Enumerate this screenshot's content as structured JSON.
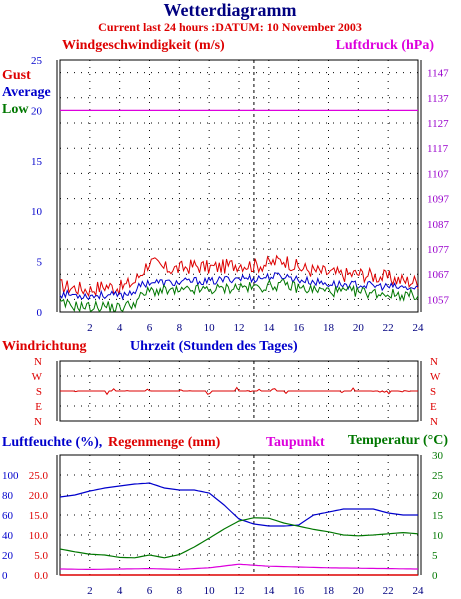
{
  "colors": {
    "red": "#dd0000",
    "blue": "#0000cc",
    "green": "#007700",
    "navy": "#000080",
    "magenta": "#dd00dd",
    "purple": "#9900cc",
    "black": "#000000",
    "grid": "#000000"
  },
  "header": {
    "title": "Wetterdiagramm",
    "subtitle": "Current last 24 hours :DATUM: 10 November 2003"
  },
  "chart_data": [
    {
      "type": "line",
      "title": "Windgeschwindigkeit (m/s)",
      "right_title": "Luftdruck (hPa)",
      "xlim": [
        0,
        24
      ],
      "ylim": [
        0,
        25
      ],
      "y2lim": [
        1052,
        1152
      ],
      "x_ticks": [
        "2",
        "4",
        "6",
        "8",
        "10",
        "12",
        "14",
        "16",
        "18",
        "20",
        "22",
        "24"
      ],
      "y_ticks": [
        "0",
        "5",
        "10",
        "15",
        "20",
        "25"
      ],
      "y2_ticks": [
        "1057",
        "1067",
        "1077",
        "1087",
        "1097",
        "1107",
        "1117",
        "1127",
        "1137",
        "1147"
      ],
      "legend": [
        "Gust",
        "Average",
        "Low"
      ],
      "grid": true,
      "series": [
        {
          "name": "Gust",
          "color": "#dd0000",
          "x": [
            0,
            1,
            2,
            3,
            4,
            5,
            5.5,
            6,
            7,
            8,
            9,
            10,
            11,
            12,
            13,
            14,
            15,
            16,
            17,
            18,
            19,
            20,
            21,
            22,
            23,
            24
          ],
          "values": [
            2.6,
            2.4,
            2.2,
            2.6,
            2.4,
            3.0,
            4.0,
            5.0,
            4.3,
            4.3,
            4.6,
            4.4,
            4.5,
            4.8,
            4.6,
            4.8,
            5.2,
            4.4,
            4.1,
            3.9,
            3.7,
            3.8,
            3.6,
            3.4,
            3.1,
            3.0
          ]
        },
        {
          "name": "Average",
          "color": "#0000cc",
          "x": [
            0,
            1,
            2,
            3,
            4,
            5,
            5.5,
            6,
            7,
            8,
            9,
            10,
            11,
            12,
            13,
            14,
            15,
            16,
            17,
            18,
            19,
            20,
            21,
            22,
            23,
            24
          ],
          "values": [
            1.8,
            1.7,
            1.6,
            1.7,
            1.6,
            2.1,
            2.7,
            3.0,
            2.9,
            2.9,
            3.1,
            3.0,
            3.2,
            3.4,
            3.3,
            3.5,
            3.6,
            3.2,
            3.0,
            2.8,
            2.7,
            2.7,
            2.6,
            2.5,
            2.4,
            2.3
          ]
        },
        {
          "name": "Low",
          "color": "#007700",
          "x": [
            0,
            1,
            2,
            3,
            4,
            5,
            5.5,
            6,
            7,
            8,
            9,
            10,
            11,
            12,
            13,
            14,
            15,
            16,
            17,
            18,
            19,
            20,
            21,
            22,
            23,
            24
          ],
          "values": [
            0.8,
            0.6,
            0.5,
            0.6,
            0.4,
            0.9,
            1.6,
            2.1,
            2.1,
            2.0,
            2.2,
            2.2,
            2.3,
            2.5,
            2.4,
            2.6,
            2.7,
            2.4,
            2.2,
            2.1,
            2.0,
            2.0,
            1.9,
            1.8,
            1.7,
            1.7
          ]
        },
        {
          "name": "Luftdruck",
          "color": "#dd00dd",
          "axis": "right",
          "x": [
            0,
            24
          ],
          "values": [
            1132,
            1132
          ]
        }
      ]
    },
    {
      "type": "line",
      "title": "Windrichtung",
      "xlabel": "Uhrzeit (Stunden des Tages)",
      "xlim": [
        0,
        24
      ],
      "y_ticks": [
        "N",
        "W",
        "S",
        "E",
        "N"
      ],
      "grid": true,
      "series": [
        {
          "name": "Windrichtung",
          "color": "#dd0000",
          "x": [
            0,
            24
          ],
          "values": [
            "S",
            "S"
          ]
        }
      ]
    },
    {
      "type": "line",
      "titles": [
        "Luftfeuchte (%),",
        "Regenmenge (mm)",
        "Taupunkt",
        "Temperatur (°C)"
      ],
      "xlim": [
        0,
        24
      ],
      "y_ticks_humidity": [
        "0",
        "20",
        "40",
        "60",
        "80",
        "100"
      ],
      "y_ticks_rain": [
        "0.0",
        "5.0",
        "10.0",
        "15.0",
        "20.0",
        "25.0"
      ],
      "y_ticks_temp": [
        "0",
        "5",
        "10",
        "15",
        "20",
        "25",
        "30"
      ],
      "x_ticks": [
        "2",
        "4",
        "6",
        "8",
        "10",
        "12",
        "14",
        "16",
        "18",
        "20",
        "22",
        "24"
      ],
      "grid": true,
      "series": [
        {
          "name": "Luftfeuchte (%)",
          "color": "#0000cc",
          "x": [
            0,
            1,
            2,
            3,
            4,
            5,
            6,
            7,
            8,
            9,
            10,
            11,
            12,
            13,
            14,
            15,
            16,
            17,
            18,
            19,
            20,
            21,
            22,
            23,
            24
          ],
          "values": [
            78,
            80,
            84,
            87,
            89,
            91,
            92,
            87,
            85,
            85,
            82,
            70,
            56,
            51,
            49,
            49,
            50,
            60,
            63,
            66,
            66,
            66,
            62,
            60,
            60
          ]
        },
        {
          "name": "Temperatur (°C)",
          "color": "#007700",
          "x": [
            0,
            1,
            2,
            3,
            4,
            5,
            6,
            7,
            8,
            9,
            10,
            11,
            12,
            13,
            14,
            15,
            16,
            17,
            18,
            19,
            20,
            21,
            22,
            23,
            24
          ],
          "values": [
            6.5,
            5.8,
            5.2,
            5.0,
            4.4,
            4.3,
            5.0,
            4.3,
            5.1,
            7.0,
            9.2,
            11.5,
            13.5,
            14.3,
            14.2,
            13.0,
            12.2,
            11.4,
            10.8,
            10.0,
            9.8,
            10.0,
            10.3,
            10.6,
            10.3
          ]
        },
        {
          "name": "Taupunkt",
          "color": "#dd00dd",
          "x": [
            0,
            2,
            4,
            6,
            8,
            10,
            12,
            14,
            16,
            18,
            20,
            22,
            24
          ],
          "values": [
            1.5,
            1.4,
            1.5,
            1.6,
            1.4,
            1.8,
            2.7,
            2.2,
            2.0,
            1.8,
            1.7,
            1.6,
            1.5
          ]
        },
        {
          "name": "Regenmenge (mm)",
          "color": "#dd0000",
          "x": [
            0,
            24
          ],
          "values": [
            0,
            0
          ]
        }
      ]
    }
  ]
}
